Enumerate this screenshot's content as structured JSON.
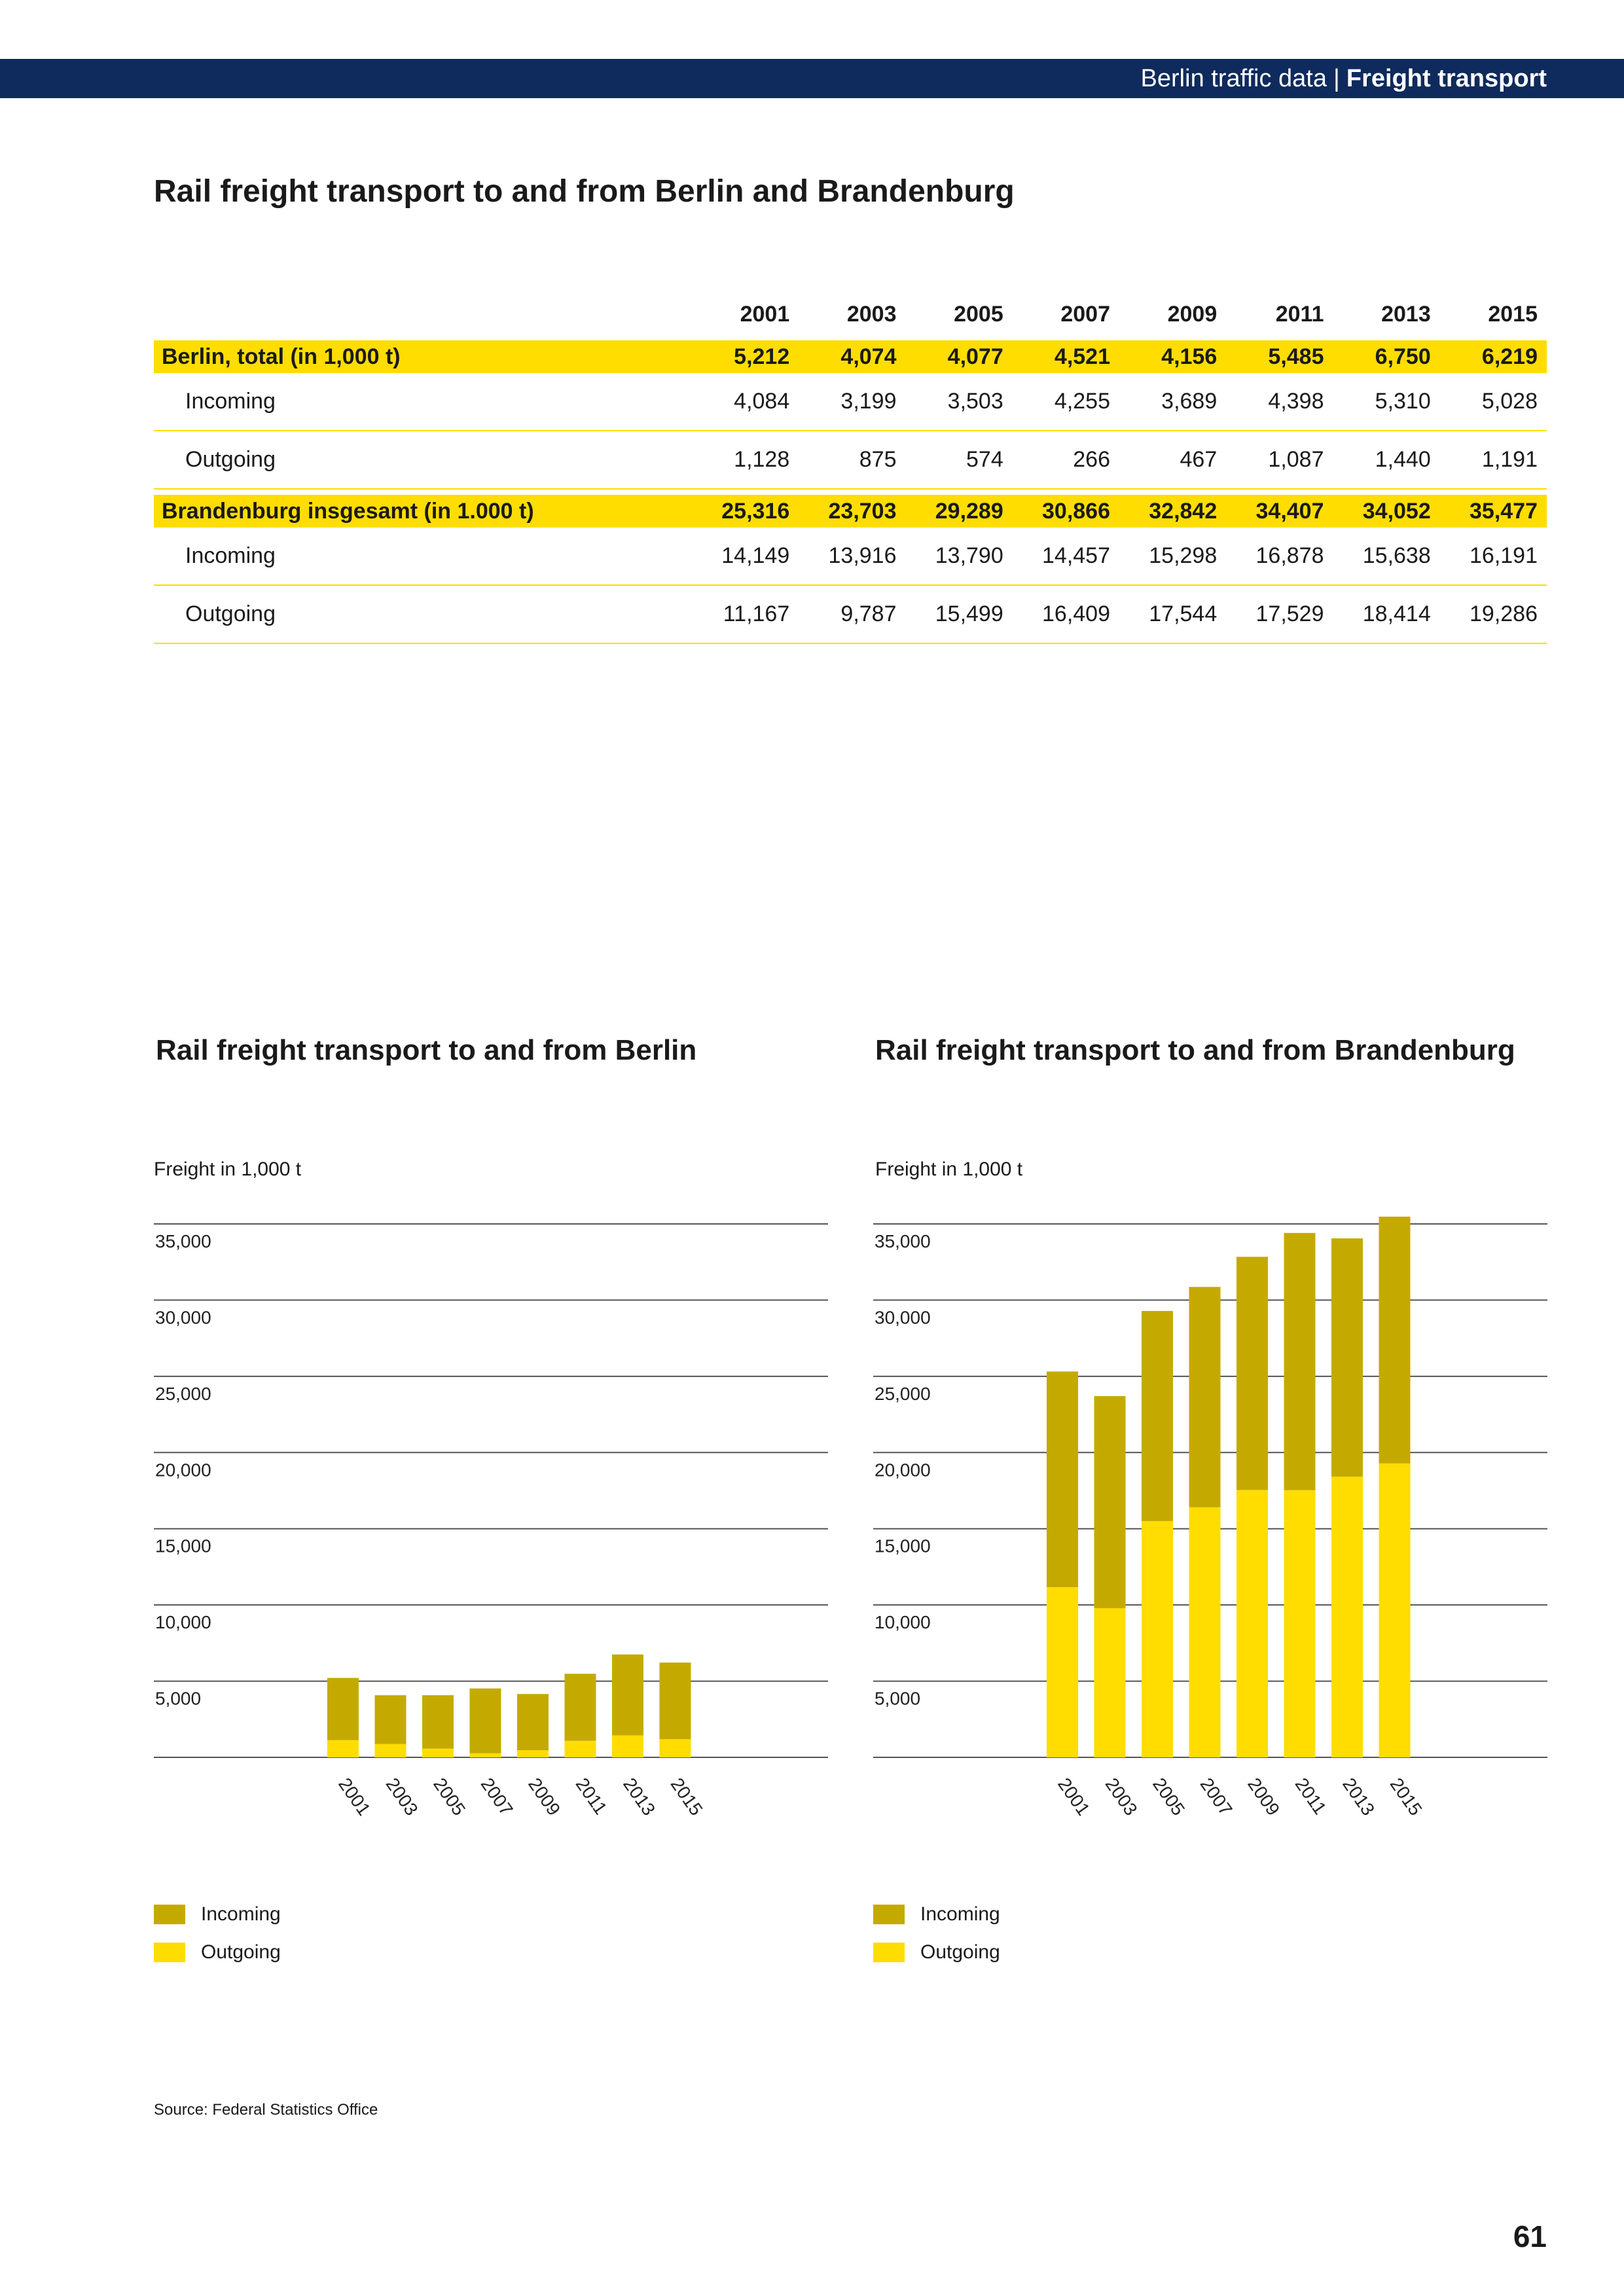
{
  "header": {
    "section": "Berlin traffic data",
    "separator": "|",
    "topic": "Freight transport"
  },
  "main_title": "Rail freight transport to and from Berlin and Brandenburg",
  "table": {
    "years": [
      "2001",
      "2003",
      "2005",
      "2007",
      "2009",
      "2011",
      "2013",
      "2015"
    ],
    "groups": [
      {
        "total": {
          "label": "Berlin, total (in 1,000 t)",
          "values": [
            "5,212",
            "4,074",
            "4,077",
            "4,521",
            "4,156",
            "5,485",
            "6,750",
            "6,219"
          ]
        },
        "incoming": {
          "label": "Incoming",
          "values": [
            "4,084",
            "3,199",
            "3,503",
            "4,255",
            "3,689",
            "4,398",
            "5,310",
            "5,028"
          ]
        },
        "outgoing": {
          "label": "Outgoing",
          "values": [
            "1,128",
            "875",
            "574",
            "266",
            "467",
            "1,087",
            "1,440",
            "1,191"
          ]
        }
      },
      {
        "total": {
          "label": "Brandenburg insgesamt (in 1.000 t)",
          "values": [
            "25,316",
            "23,703",
            "29,289",
            "30,866",
            "32,842",
            "34,407",
            "34,052",
            "35,477"
          ]
        },
        "incoming": {
          "label": "Incoming",
          "values": [
            "14,149",
            "13,916",
            "13,790",
            "14,457",
            "15,298",
            "16,878",
            "15,638",
            "16,191"
          ]
        },
        "outgoing": {
          "label": "Outgoing",
          "values": [
            "11,167",
            "9,787",
            "15,499",
            "16,409",
            "17,544",
            "17,529",
            "18,414",
            "19,286"
          ]
        }
      }
    ]
  },
  "chart_data": [
    {
      "type": "bar",
      "stacked": true,
      "title": "Rail freight transport to and from Berlin",
      "ylabel": "Freight in 1,000 t",
      "ylim": [
        0,
        35000
      ],
      "yticks": [
        5000,
        10000,
        15000,
        20000,
        25000,
        30000,
        35000
      ],
      "ytick_labels": [
        "5,000",
        "10,000",
        "15,000",
        "20,000",
        "25,000",
        "30,000",
        "35,000"
      ],
      "categories": [
        "2001",
        "2003",
        "2005",
        "2007",
        "2009",
        "2011",
        "2013",
        "2015"
      ],
      "series": [
        {
          "name": "Outgoing",
          "values": [
            1128,
            875,
            574,
            266,
            467,
            1087,
            1440,
            1191
          ]
        },
        {
          "name": "Incoming",
          "values": [
            4084,
            3199,
            3503,
            4255,
            3689,
            4398,
            5310,
            5028
          ]
        }
      ],
      "legend": [
        {
          "name": "Incoming"
        },
        {
          "name": "Outgoing"
        }
      ],
      "legend_placement": "bottom-left",
      "grid": true
    },
    {
      "type": "bar",
      "stacked": true,
      "title": "Rail freight transport to and from Brandenburg",
      "ylabel": "Freight in 1,000 t",
      "ylim": [
        0,
        35000
      ],
      "yticks": [
        5000,
        10000,
        15000,
        20000,
        25000,
        30000,
        35000
      ],
      "ytick_labels": [
        "5,000",
        "10,000",
        "15,000",
        "20,000",
        "25,000",
        "30,000",
        "35,000"
      ],
      "categories": [
        "2001",
        "2003",
        "2005",
        "2007",
        "2009",
        "2011",
        "2013",
        "2015"
      ],
      "series": [
        {
          "name": "Outgoing",
          "values": [
            11167,
            9787,
            15499,
            16409,
            17544,
            17529,
            18414,
            19286
          ]
        },
        {
          "name": "Incoming",
          "values": [
            14149,
            13916,
            13790,
            14457,
            15298,
            16878,
            15638,
            16191
          ]
        }
      ],
      "legend": [
        {
          "name": "Incoming"
        },
        {
          "name": "Outgoing"
        }
      ],
      "legend_placement": "bottom-left",
      "grid": true
    }
  ],
  "colors": {
    "header_bar": "#0f2a5c",
    "highlight": "#ffdd00",
    "incoming": "#c4aa00",
    "outgoing": "#ffdd00",
    "gridline": "#555555"
  },
  "source": "Source: Federal Statistics Office",
  "page_number": "61"
}
